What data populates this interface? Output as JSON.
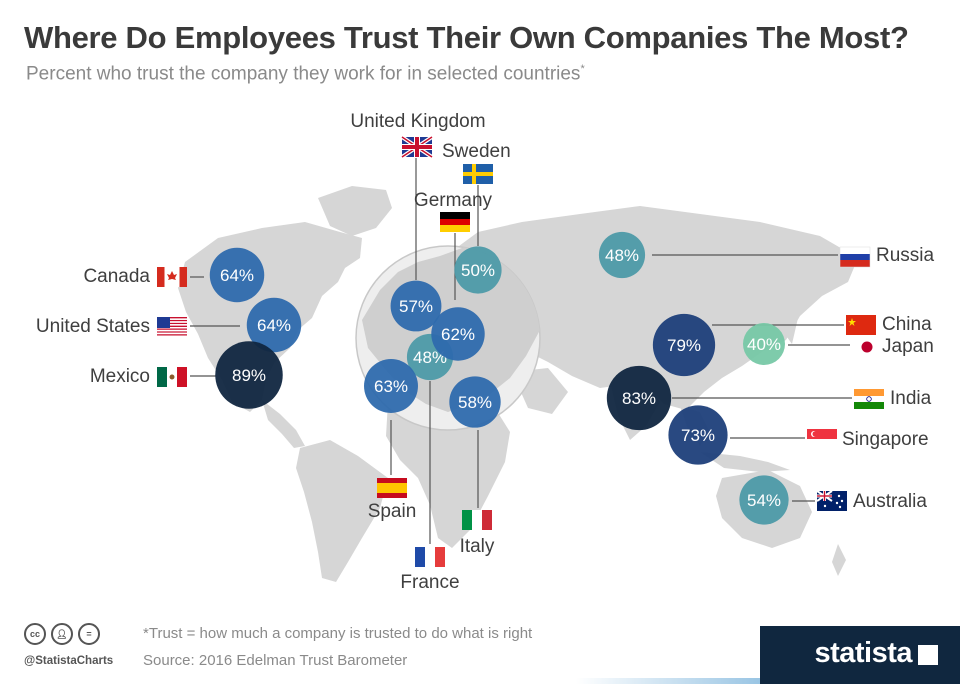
{
  "title": "Where Do Employees Trust Their Own Companies The Most?",
  "subtitle": "Percent who trust the company they work for in selected countries",
  "subtitle_marker": "*",
  "chart_data": {
    "type": "bubble-map",
    "unit": "%",
    "title": "Where Do Employees Trust Their Own Companies The Most?",
    "countries": [
      {
        "name": "Canada",
        "value": 64,
        "label": "64%"
      },
      {
        "name": "United States",
        "value": 64,
        "label": "64%"
      },
      {
        "name": "Mexico",
        "value": 89,
        "label": "89%"
      },
      {
        "name": "United Kingdom",
        "value": 57,
        "label": "57%"
      },
      {
        "name": "Sweden",
        "value": 50,
        "label": "50%"
      },
      {
        "name": "Germany",
        "value": 62,
        "label": "62%"
      },
      {
        "name": "France",
        "value": 48,
        "label": "48%"
      },
      {
        "name": "Spain",
        "value": 63,
        "label": "63%"
      },
      {
        "name": "Italy",
        "value": 58,
        "label": "58%"
      },
      {
        "name": "Russia",
        "value": 48,
        "label": "48%"
      },
      {
        "name": "China",
        "value": 79,
        "label": "79%"
      },
      {
        "name": "Japan",
        "value": 40,
        "label": "40%"
      },
      {
        "name": "India",
        "value": 83,
        "label": "83%"
      },
      {
        "name": "Singapore",
        "value": 73,
        "label": "73%"
      },
      {
        "name": "Australia",
        "value": 54,
        "label": "54%"
      }
    ],
    "color_scale": [
      "#77c8a6",
      "#4d9aa8",
      "#2e6aad",
      "#1e3f7a",
      "#102640"
    ]
  },
  "footer": {
    "note": "*Trust = how much a company is trusted to do what is right",
    "source": "Source: 2016 Edelman Trust Barometer",
    "handle": "@StatistaCharts",
    "cc_icons": [
      "cc-icon",
      "by-icon",
      "nd-icon"
    ],
    "brand": "statista"
  },
  "colors": {
    "title": "#3a3a3a",
    "subtitle": "#8a8a8a",
    "map_land": "#d6d6d6",
    "leader_line": "#555555",
    "brand_band": "#10273f"
  }
}
